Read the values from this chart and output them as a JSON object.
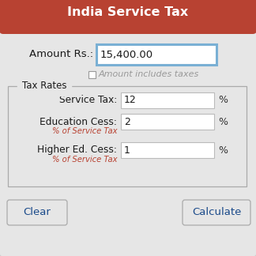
{
  "title": "India Service Tax",
  "title_bg": "#b84232",
  "title_color": "#ffffff",
  "title_fontsize": 11.5,
  "bg_color": "#e6e6e6",
  "amount_label": "Amount Rs.:",
  "amount_value": "15,400.00",
  "amount_box_border": "#7ab0d4",
  "checkbox_label": "Amount includes taxes",
  "tax_rates_label": "Tax Rates",
  "fields": [
    {
      "label": "Service Tax:",
      "value": "12",
      "sublabel": null
    },
    {
      "label": "Education Cess:",
      "value": "2",
      "sublabel": "% of Service Tax"
    },
    {
      "label": "Higher Ed. Cess:",
      "value": "1",
      "sublabel": "% of Service Tax"
    }
  ],
  "btn_clear": "Clear",
  "btn_calculate": "Calculate",
  "field_box_color": "#ffffff",
  "field_box_border": "#bbbbbb",
  "percent_color": "#333333",
  "sublabel_color": "#b84232",
  "label_color": "#1a1a1a",
  "outer_border_color": "#cccccc",
  "btn_text_color": "#1a4a8a"
}
